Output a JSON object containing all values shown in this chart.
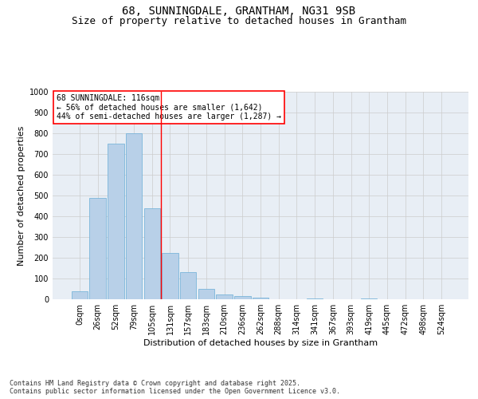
{
  "title_line1": "68, SUNNINGDALE, GRANTHAM, NG31 9SB",
  "title_line2": "Size of property relative to detached houses in Grantham",
  "xlabel": "Distribution of detached houses by size in Grantham",
  "ylabel": "Number of detached properties",
  "categories": [
    "0sqm",
    "26sqm",
    "52sqm",
    "79sqm",
    "105sqm",
    "131sqm",
    "157sqm",
    "183sqm",
    "210sqm",
    "236sqm",
    "262sqm",
    "288sqm",
    "314sqm",
    "341sqm",
    "367sqm",
    "393sqm",
    "419sqm",
    "445sqm",
    "472sqm",
    "498sqm",
    "524sqm"
  ],
  "bar_values": [
    40,
    490,
    750,
    800,
    440,
    225,
    130,
    50,
    25,
    15,
    8,
    0,
    0,
    5,
    0,
    0,
    5,
    0,
    0,
    0,
    0
  ],
  "bar_color": "#b8d0e8",
  "bar_edge_color": "#6aaed6",
  "grid_color": "#cccccc",
  "background_color": "#e8eef5",
  "vline_x": 4.5,
  "vline_color": "red",
  "annotation_text": "68 SUNNINGDALE: 116sqm\n← 56% of detached houses are smaller (1,642)\n44% of semi-detached houses are larger (1,287) →",
  "annotation_box_color": "red",
  "ylim": [
    0,
    1000
  ],
  "yticks": [
    0,
    100,
    200,
    300,
    400,
    500,
    600,
    700,
    800,
    900,
    1000
  ],
  "footnote": "Contains HM Land Registry data © Crown copyright and database right 2025.\nContains public sector information licensed under the Open Government Licence v3.0.",
  "title_fontsize": 10,
  "subtitle_fontsize": 9,
  "axis_label_fontsize": 8,
  "tick_fontsize": 7,
  "annotation_fontsize": 7,
  "footnote_fontsize": 6
}
